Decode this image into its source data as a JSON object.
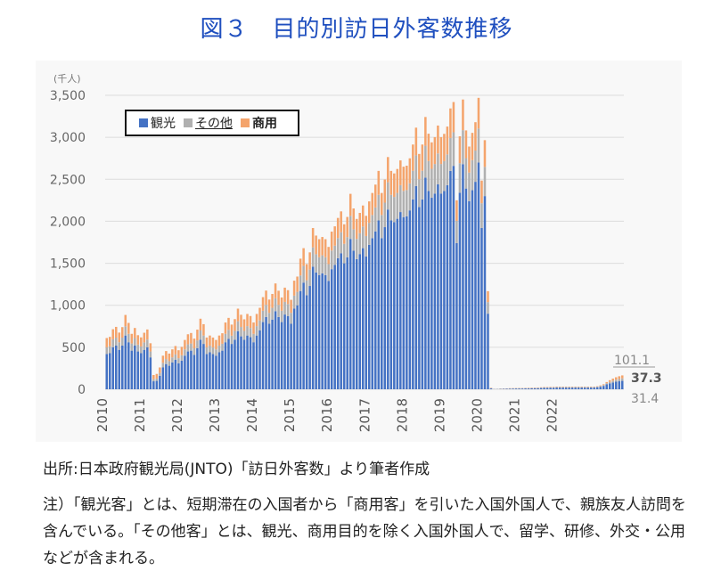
{
  "page": {
    "title": "図３　目的別訪日外客数推移",
    "source": "出所:日本政府観光局(JNTO)「訪日外客数」より筆者作成",
    "note": "注）「観光客」とは、短期滞在の入国者から「商用客」を引いた入国外国人で、親族友人訪問を含んでいる。「その他客」とは、観光、商用目的を除く入国外国人で、留学、研修、外交・公用などが含まれる。"
  },
  "colors": {
    "観光": "#4472c4",
    "その他": "#b0b0b0",
    "商用": "#f4a46c",
    "title": "#1f4fbf"
  },
  "chart_data": {
    "type": "bar",
    "stacked": true,
    "unit_label": "(千人)",
    "ylim": [
      0,
      3500
    ],
    "yticks": [
      0,
      500,
      1000,
      1500,
      2000,
      2500,
      3000,
      3500
    ],
    "ytick_labels": [
      "0",
      "500",
      "1,000",
      "1,500",
      "2,000",
      "2,500",
      "3,000",
      "3,500"
    ],
    "xtick_labels": [
      "2010",
      "2011",
      "2012",
      "2013",
      "2014",
      "2015",
      "2016",
      "2017",
      "2018",
      "2019",
      "2020",
      "2021",
      "2022"
    ],
    "months_per_year": 12,
    "legend": {
      "position": "top-left",
      "entries": [
        "観光",
        "その他",
        "商用"
      ]
    },
    "annotations": {
      "total": "101.1",
      "商用": "37.3",
      "その他": "31.4"
    },
    "series": [
      {
        "name": "観光",
        "values": [
          420,
          430,
          500,
          520,
          470,
          520,
          640,
          560,
          460,
          520,
          450,
          430,
          470,
          500,
          380,
          95,
          100,
          160,
          260,
          300,
          280,
          320,
          350,
          310,
          340,
          400,
          450,
          460,
          410,
          490,
          590,
          540,
          420,
          440,
          420,
          400,
          440,
          460,
          560,
          600,
          540,
          590,
          690,
          630,
          590,
          640,
          620,
          560,
          640,
          700,
          800,
          860,
          780,
          830,
          930,
          860,
          800,
          890,
          870,
          780,
          960,
          1000,
          1170,
          1270,
          1120,
          1230,
          1460,
          1390,
          1360,
          1380,
          1360,
          1290,
          1430,
          1480,
          1560,
          1620,
          1500,
          1570,
          1790,
          1650,
          1550,
          1610,
          1680,
          1580,
          1720,
          1800,
          1880,
          2010,
          1800,
          1930,
          2140,
          2010,
          1990,
          2030,
          2110,
          2050,
          2060,
          2130,
          2260,
          2420,
          2170,
          2260,
          2520,
          2360,
          2280,
          2330,
          2440,
          2330,
          2360,
          2430,
          2600,
          2660,
          1740,
          2340,
          2680,
          2390,
          2240,
          2370,
          2470,
          2700,
          1920,
          2300,
          900,
          10,
          2,
          3,
          4,
          5,
          6,
          7,
          8,
          9,
          9,
          9,
          10,
          10,
          11,
          12,
          13,
          15,
          16,
          17,
          18,
          18,
          20,
          20,
          20,
          20,
          20,
          20,
          20,
          20,
          20,
          20,
          20,
          20,
          20,
          25,
          30,
          40,
          60,
          70,
          80,
          90,
          95,
          100
        ]
      },
      {
        "name": "その他",
        "values": [
          80,
          82,
          95,
          95,
          90,
          95,
          110,
          100,
          85,
          90,
          82,
          80,
          88,
          92,
          70,
          25,
          28,
          35,
          55,
          60,
          55,
          60,
          65,
          60,
          65,
          75,
          85,
          85,
          78,
          92,
          110,
          100,
          78,
          80,
          78,
          75,
          80,
          82,
          100,
          108,
          98,
          105,
          120,
          112,
          105,
          112,
          110,
          100,
          112,
          120,
          135,
          145,
          130,
          140,
          155,
          145,
          135,
          150,
          145,
          130,
          155,
          160,
          185,
          200,
          178,
          195,
          230,
          218,
          212,
          215,
          212,
          200,
          222,
          230,
          240,
          250,
          232,
          242,
          275,
          255,
          240,
          248,
          258,
          245,
          262,
          275,
          285,
          305,
          275,
          292,
          325,
          305,
          300,
          308,
          320,
          312,
          312,
          322,
          342,
          365,
          330,
          342,
          380,
          358,
          345,
          352,
          368,
          352,
          356,
          366,
          392,
          400,
          265,
          352,
          405,
          362,
          340,
          358,
          372,
          405,
          295,
          348,
          138,
          4,
          1,
          1,
          2,
          2,
          3,
          3,
          3,
          3,
          4,
          4,
          4,
          4,
          4,
          4,
          5,
          5,
          5,
          5,
          6,
          6,
          6,
          6,
          6,
          6,
          6,
          6,
          6,
          6,
          6,
          6,
          6,
          6,
          6,
          6,
          8,
          10,
          12,
          18,
          22,
          25,
          28,
          30,
          31
        ]
      },
      {
        "name": "商用",
        "values": [
          110,
          112,
          120,
          128,
          115,
          125,
          135,
          130,
          115,
          120,
          112,
          108,
          115,
          120,
          98,
          50,
          55,
          65,
          85,
          95,
          90,
          95,
          100,
          95,
          100,
          112,
          120,
          125,
          115,
          128,
          140,
          135,
          118,
          120,
          118,
          112,
          120,
          125,
          135,
          142,
          132,
          140,
          150,
          145,
          138,
          145,
          142,
          135,
          145,
          150,
          162,
          170,
          158,
          165,
          175,
          168,
          158,
          170,
          165,
          155,
          178,
          182,
          200,
          210,
          192,
          205,
          230,
          222,
          215,
          218,
          215,
          205,
          225,
          230,
          240,
          248,
          232,
          240,
          262,
          248,
          238,
          242,
          250,
          240,
          255,
          262,
          272,
          285,
          262,
          275,
          300,
          285,
          280,
          285,
          295,
          288,
          290,
          298,
          312,
          330,
          302,
          312,
          342,
          325,
          315,
          320,
          332,
          320,
          325,
          332,
          352,
          360,
          245,
          320,
          365,
          330,
          310,
          325,
          338,
          365,
          270,
          318,
          130,
          4,
          1,
          1,
          2,
          2,
          2,
          3,
          3,
          3,
          3,
          3,
          3,
          4,
          4,
          4,
          4,
          4,
          5,
          5,
          5,
          5,
          5,
          5,
          5,
          5,
          5,
          5,
          5,
          5,
          5,
          5,
          5,
          5,
          5,
          5,
          8,
          10,
          14,
          20,
          25,
          28,
          32,
          35,
          37
        ]
      }
    ]
  }
}
